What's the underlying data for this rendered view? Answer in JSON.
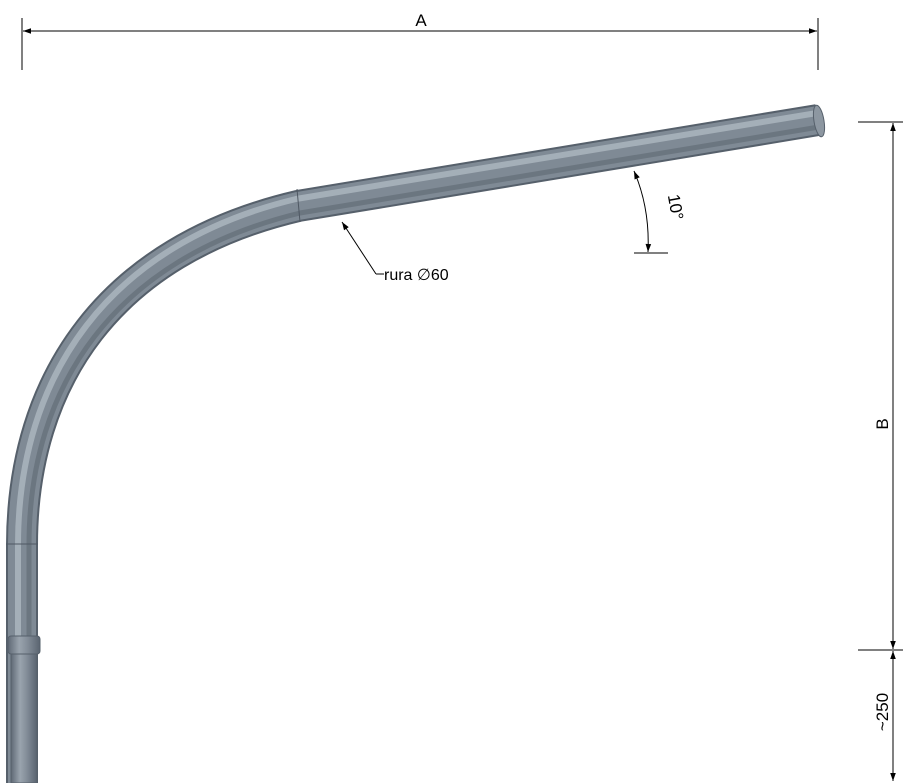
{
  "drawing": {
    "dimensions": {
      "width_label": "A",
      "height_label": "B",
      "angle_label": "10°",
      "base_label": "~250"
    },
    "callout": {
      "text": "rura ∅60"
    },
    "colors": {
      "tube_fill": "#7f8a95",
      "tube_highlight": "#aab3bc",
      "tube_edge": "#5a6470",
      "dimension_line": "#000000",
      "background": "#ffffff"
    }
  }
}
